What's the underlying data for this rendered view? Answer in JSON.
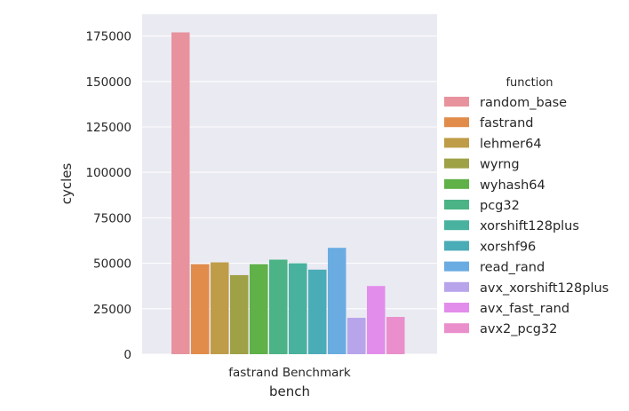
{
  "chart_data": {
    "type": "bar",
    "categories": [
      "fastrand Benchmark"
    ],
    "xlabel": "bench",
    "ylabel": "cycles",
    "ylim": [
      0,
      187000
    ],
    "yticks": [
      0,
      25000,
      50000,
      75000,
      100000,
      125000,
      150000,
      175000
    ],
    "grid": true,
    "legend_title": "function",
    "legend_position": "right",
    "series": [
      {
        "name": "random_base",
        "values": [
          177000
        ],
        "color": "#e8929e"
      },
      {
        "name": "fastrand",
        "values": [
          49500
        ],
        "color": "#e18c4b"
      },
      {
        "name": "lehmer64",
        "values": [
          50500
        ],
        "color": "#bf9c48"
      },
      {
        "name": "wyrng",
        "values": [
          43500
        ],
        "color": "#9ea146"
      },
      {
        "name": "wyhash64",
        "values": [
          49500
        ],
        "color": "#5fb148"
      },
      {
        "name": "pcg32",
        "values": [
          52000
        ],
        "color": "#4bb385"
      },
      {
        "name": "xorshift128plus",
        "values": [
          50000
        ],
        "color": "#48b29f"
      },
      {
        "name": "xorshf96",
        "values": [
          46500
        ],
        "color": "#4aacb7"
      },
      {
        "name": "read_rand",
        "values": [
          58500
        ],
        "color": "#6aace1"
      },
      {
        "name": "avx_xorshift128plus",
        "values": [
          20000
        ],
        "color": "#b7a4ea"
      },
      {
        "name": "avx_fast_rand",
        "values": [
          37500
        ],
        "color": "#e28deb"
      },
      {
        "name": "avx2_pcg32",
        "values": [
          20500
        ],
        "color": "#ea8fcb"
      }
    ]
  }
}
